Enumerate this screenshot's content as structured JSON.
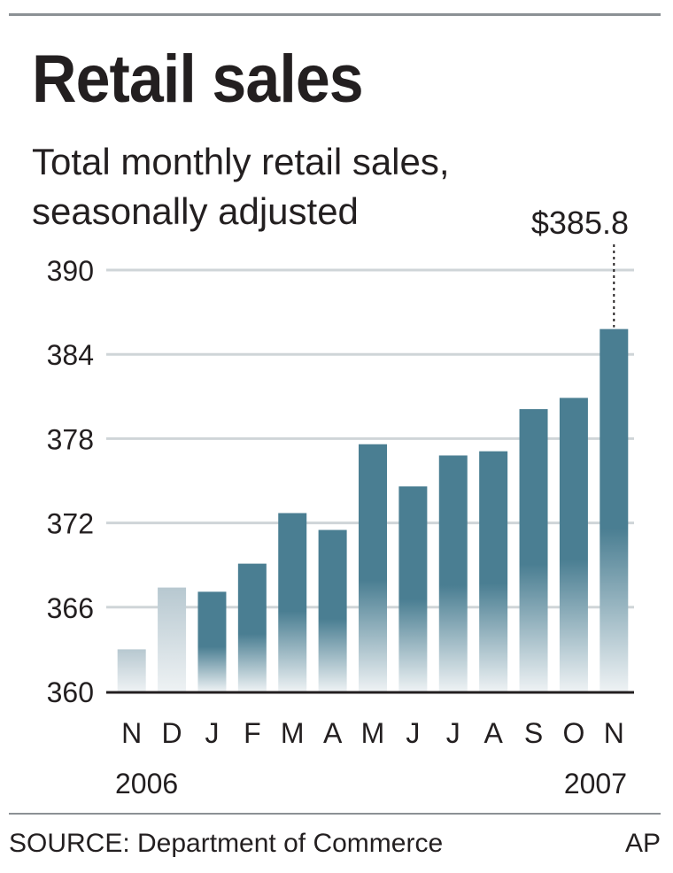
{
  "chart_data": {
    "type": "bar",
    "title": "Retail sales",
    "subtitle": "Total monthly retail sales, seasonally adjusted",
    "categories": [
      "N",
      "D",
      "J",
      "F",
      "M",
      "A",
      "M",
      "J",
      "J",
      "A",
      "S",
      "O",
      "N"
    ],
    "values": [
      363.0,
      367.4,
      367.1,
      369.1,
      372.7,
      371.5,
      377.6,
      374.6,
      376.8,
      377.1,
      380.1,
      380.9,
      385.8
    ],
    "year_labels": {
      "start": "2006",
      "end": "2007"
    },
    "yticks": [
      "390",
      "384",
      "378",
      "372",
      "366",
      "360"
    ],
    "ylim": [
      360,
      390
    ],
    "grid": true,
    "annotation": "$385.8",
    "colors": {
      "recent": "#4a7e92",
      "earlier": "#b7c8d0",
      "grid": "#cfd5d8",
      "axis": "#231f20"
    }
  },
  "footer": {
    "source": "SOURCE: Department of Commerce",
    "credit": "AP"
  }
}
